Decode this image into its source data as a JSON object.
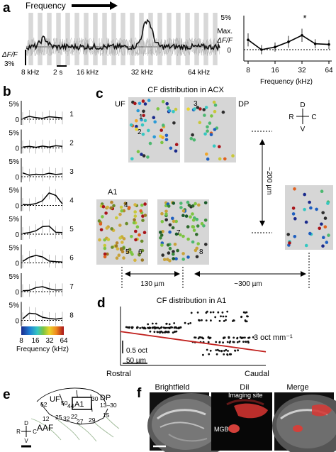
{
  "panels": {
    "a": {
      "label": "a",
      "frequency_header": "Frequency",
      "scale_df": "ΔF/F",
      "scale_pct": "3%",
      "time_scale": "2 s",
      "stim_labels": [
        "8 kHz",
        "16 kHz",
        "32 kHz",
        "64 kHz"
      ],
      "tuning": {
        "ytick_top": "5%",
        "ytick_zero": "0",
        "ylabel_1": "Max.",
        "ylabel_2": "ΔF/F",
        "xlabel": "Frequency (kHz)",
        "xticks": [
          "8",
          "16",
          "32",
          "64"
        ],
        "star": "*"
      }
    },
    "b": {
      "label": "b",
      "ytick_top": "5%",
      "ytick_zero": "0",
      "cell_ids": [
        "1",
        "2",
        "3",
        "4",
        "5",
        "6",
        "7",
        "8"
      ],
      "colorbar_ticks": [
        "8",
        "16",
        "32",
        "64"
      ],
      "colorbar_label": "Frequency (kHz)"
    },
    "c": {
      "label": "c",
      "title": "CF distribution in ACX",
      "uf_label": "UF",
      "dp_label": "DP",
      "a1_label": "A1",
      "dp2_label": "DP",
      "cell_marks": [
        "1",
        "2",
        "3",
        "4",
        "5",
        "6",
        "7",
        "8"
      ],
      "compass": {
        "d": "D",
        "r": "R",
        "c": "C",
        "v": "V"
      },
      "dist_vertical": "~200 µm",
      "dist_130": "130 µm",
      "dist_300": "~300 µm"
    },
    "d": {
      "label": "d",
      "title": "CF distribution in A1",
      "slope": "3 oct mm⁻¹",
      "scale_oct": "0.5 oct",
      "scale_um": "50 µm",
      "rostral": "Rostral",
      "caudal": "Caudal"
    },
    "e": {
      "label": "e",
      "areas": {
        "uf": "UF",
        "a1": "A1",
        "dp": "DP",
        "aaf": "AAF"
      },
      "numbers": [
        "62",
        "50",
        "44",
        "30",
        "13–30",
        "12",
        "25",
        "32",
        "22",
        "27",
        "29",
        "15"
      ],
      "compass": {
        "d": "D",
        "r": "R",
        "c": "C",
        "v": "V"
      }
    },
    "f": {
      "label": "f",
      "titles": [
        "Brightfield",
        "DiI",
        "Merge"
      ],
      "imaging_site": "Imaging site",
      "mgb": "MGB"
    }
  },
  "chart_data": [
    {
      "type": "line",
      "panel": "a-tuning",
      "x": [
        8,
        11.3,
        16,
        22.6,
        32,
        45,
        64
      ],
      "x_ticks": [
        8,
        16,
        32,
        64
      ],
      "x_scale": "log",
      "values": [
        1.5,
        0,
        0.4,
        1.2,
        2.2,
        0.9,
        0.8
      ],
      "error": [
        1.0,
        0.7,
        0.7,
        0.9,
        1.0,
        0.7,
        0.7
      ],
      "xlabel": "Frequency (kHz)",
      "ylabel": "Max. ΔF/F",
      "ylim": [
        0,
        5
      ]
    },
    {
      "type": "line",
      "panel": "b",
      "x_scale": "log",
      "ylim": [
        0,
        5
      ],
      "series": [
        {
          "name": "1",
          "values": [
            0.2,
            0.9,
            0.5,
            0.3,
            0.8,
            0.6,
            0.4
          ]
        },
        {
          "name": "2",
          "values": [
            0.3,
            0.5,
            0.2,
            0.6,
            0.3,
            0.7,
            0.5
          ]
        },
        {
          "name": "3",
          "values": [
            1.2,
            0.5,
            0.8,
            0.6,
            1.1,
            0.7,
            0.9
          ]
        },
        {
          "name": "4",
          "values": [
            0.3,
            0.2,
            0.6,
            1.5,
            4.0,
            3.2,
            0.5
          ]
        },
        {
          "name": "5",
          "values": [
            0.2,
            0.5,
            1.1,
            2.4,
            2.6,
            0.6,
            0.5
          ]
        },
        {
          "name": "6",
          "values": [
            0.5,
            1.8,
            2.4,
            1.9,
            0.6,
            0.4,
            0.3
          ]
        },
        {
          "name": "7",
          "values": [
            0.3,
            0.4,
            1.3,
            1.6,
            0.9,
            0.5,
            0.6
          ]
        },
        {
          "name": "8",
          "values": [
            0.5,
            2.3,
            2.1,
            1.0,
            0.6,
            0.4,
            0.7
          ]
        }
      ]
    },
    {
      "type": "scatter",
      "panel": "d",
      "xlabel": "",
      "ylabel": "",
      "x_range": [
        0,
        1
      ],
      "y_range": [
        0,
        1
      ],
      "regression": {
        "x": [
          0,
          1
        ],
        "y": [
          0.62,
          0.25
        ]
      }
    }
  ]
}
